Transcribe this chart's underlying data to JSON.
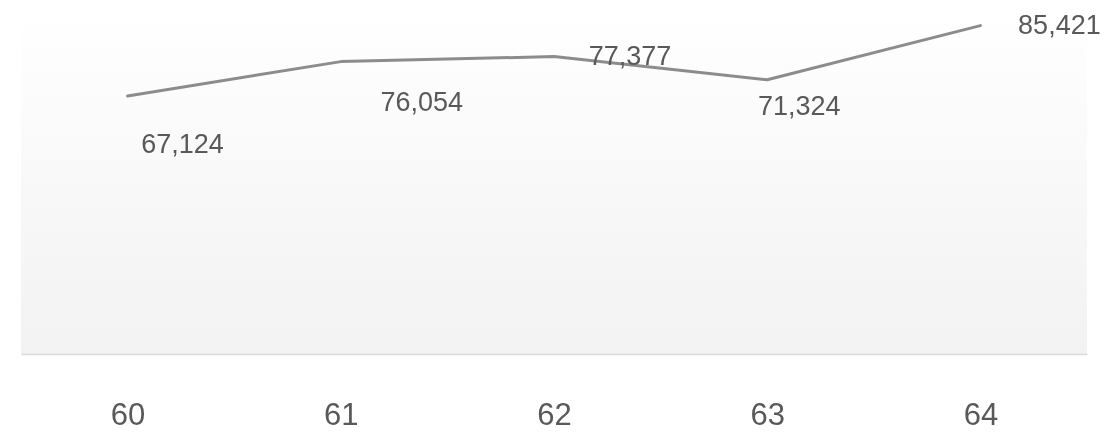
{
  "chart_data": {
    "type": "line",
    "categories": [
      "60",
      "61",
      "62",
      "63",
      "64"
    ],
    "series": [
      {
        "color": "#8c8c8c",
        "values": [
          67124,
          76054,
          77377,
          71324,
          85421
        ],
        "value_labels": [
          "67,124",
          "76,054",
          "77,377",
          "71,324",
          "85,421"
        ]
      }
    ],
    "tick_labels": "x"
  }
}
